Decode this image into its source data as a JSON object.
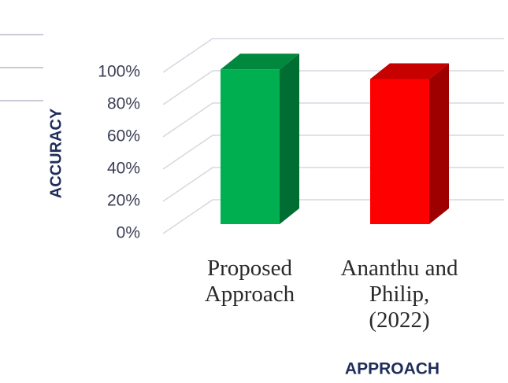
{
  "chart_data": {
    "type": "bar3d",
    "categories": [
      "Proposed Approach",
      "Ananthu and Philip, (2022)"
    ],
    "values": [
      96,
      90
    ],
    "colors": [
      "#00b050",
      "#ff0000"
    ],
    "y_label": "ACCURACY",
    "x_label": "APPROACH",
    "ylim": [
      0,
      100
    ],
    "yticks": [
      {
        "value": 0,
        "label": "0%"
      },
      {
        "value": 20,
        "label": "20%"
      },
      {
        "value": 40,
        "label": "40%"
      },
      {
        "value": 60,
        "label": "60%"
      },
      {
        "value": 80,
        "label": "80%"
      },
      {
        "value": 100,
        "label": "100%"
      }
    ],
    "grid": true
  }
}
